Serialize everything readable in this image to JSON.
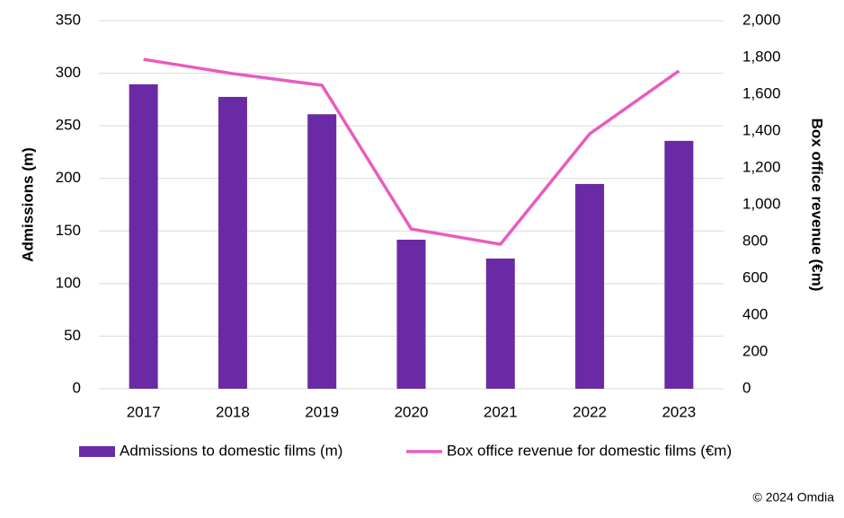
{
  "chart_data": {
    "type": "bar-line",
    "categories": [
      "2017",
      "2018",
      "2019",
      "2020",
      "2021",
      "2022",
      "2023"
    ],
    "y_label": "Admissions (m)",
    "y2_label": "Box office revenue (€m)",
    "series": [
      {
        "name": "Admissions to domestic films (m)",
        "type": "bar",
        "color": "#6a2aa5",
        "values": [
          289.5,
          277.5,
          261,
          141.7,
          123.8,
          194.7,
          235.7
        ]
      },
      {
        "name": "Box office revenue for domestic films (€m)",
        "type": "line",
        "axis": "y2",
        "color": "#e85cc0",
        "values": [
          1790,
          1712,
          1649,
          868,
          785,
          1385,
          1727
        ]
      }
    ],
    "ylim": [
      0,
      350
    ],
    "yticks": [
      0,
      50,
      100,
      150,
      200,
      250,
      300,
      350
    ],
    "y2lim": [
      0,
      2000
    ],
    "y2ticks": [
      0,
      200,
      400,
      600,
      800,
      {
        "value": 1000,
        "label": "1,000"
      },
      {
        "value": 1200,
        "label": "1,200"
      },
      {
        "value": 1400,
        "label": "1,400"
      },
      {
        "value": 1600,
        "label": "1,600"
      },
      {
        "value": 1800,
        "label": "1,800"
      },
      {
        "value": 2000,
        "label": "2,000"
      }
    ],
    "grid": true,
    "legend": "bottom",
    "credit": "© 2024 Omdia"
  }
}
